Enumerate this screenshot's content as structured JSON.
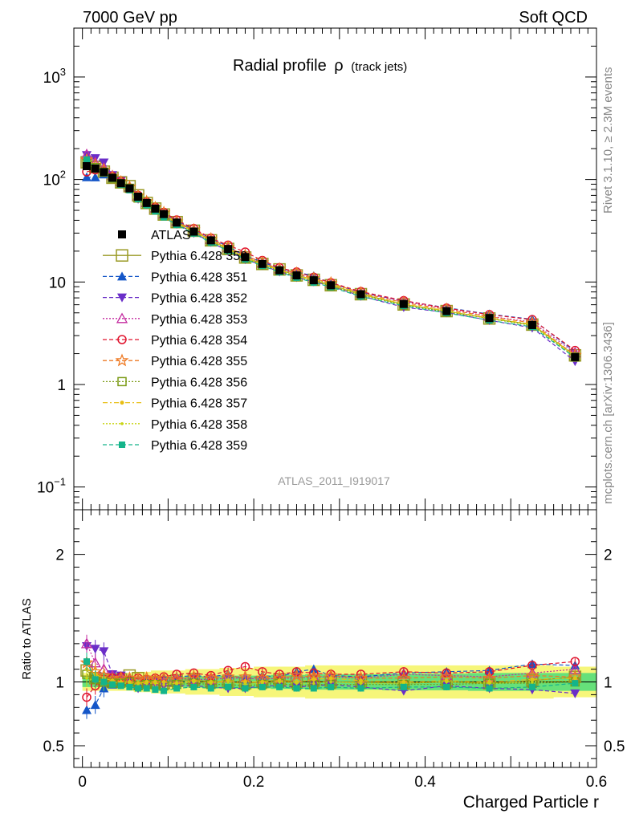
{
  "header": {
    "energy_label": "7000 GeV pp",
    "process_label": "Soft QCD",
    "title_main": "Radial profile",
    "title_symbol": "ρ",
    "title_sub": "(track jets)",
    "analysis_id": "ATLAS_2011_I919017",
    "side_label_top": "Rivet 3.1.10, ≥ 2.3M events",
    "side_label_bottom": "mcplots.cern.ch [arXiv:1306.3436]"
  },
  "axes": {
    "xlabel": "Charged Particle r",
    "ylabel_ratio": "Ratio to ATLAS",
    "xlim": [
      -0.01,
      0.6
    ],
    "ylim_main": [
      0.06,
      3000
    ],
    "ylim_ratio": [
      0.33,
      2.35
    ],
    "main_scale": "log",
    "x_ticks": [
      "0",
      "0.2",
      "0.4",
      "0.6"
    ],
    "main_tick_labels": [
      "10",
      "1",
      "10",
      "10",
      "10"
    ],
    "main_tick_exponents": [
      "−1",
      "",
      "",
      "2",
      "3"
    ],
    "ratio_ticks": [
      "0.5",
      "1",
      "2"
    ],
    "ratio_ticks_right": [
      "0.5",
      "1",
      "2"
    ]
  },
  "chart_data": {
    "type": "line",
    "x": [
      0.005,
      0.015,
      0.025,
      0.035,
      0.045,
      0.055,
      0.065,
      0.075,
      0.085,
      0.095,
      0.11,
      0.13,
      0.15,
      0.17,
      0.19,
      0.21,
      0.23,
      0.25,
      0.27,
      0.29,
      0.325,
      0.375,
      0.425,
      0.475,
      0.525,
      0.575
    ],
    "atlas_values": [
      135,
      128,
      118,
      104,
      92,
      82,
      68,
      59,
      52,
      46,
      38,
      31,
      25.5,
      21,
      17.5,
      15,
      13,
      11.6,
      10.4,
      9.3,
      7.6,
      6.1,
      5.2,
      4.45,
      3.8,
      1.85
    ],
    "series": [
      {
        "name": "ATLAS",
        "color": "#000000",
        "marker": "filled-square",
        "dash": "none",
        "ratio": [
          1,
          1,
          1,
          1,
          1,
          1,
          1,
          1,
          1,
          1,
          1,
          1,
          1,
          1,
          1,
          1,
          1,
          1,
          1,
          1,
          1,
          1,
          1,
          1,
          1,
          1
        ]
      },
      {
        "name": "Pythia 6.428 350",
        "color": "#9a9a24",
        "marker": "open-square-large",
        "dash": "solid",
        "ratio": [
          1.09,
          1.03,
          1.01,
          1.0,
          1.02,
          1.05,
          1.03,
          1.0,
          1.0,
          0.99,
          1.01,
          1.02,
          1.0,
          1.0,
          0.99,
          1.0,
          1.02,
          1.0,
          1.01,
          1.0,
          1.0,
          0.99,
          1.0,
          0.99,
          1.01,
          1.04
        ]
      },
      {
        "name": "Pythia 6.428 351",
        "color": "#1456c8",
        "marker": "filled-triangle-up",
        "dash": "dashed",
        "ratio": [
          0.78,
          0.82,
          0.95,
          0.98,
          1.0,
          1.03,
          0.97,
          1.0,
          1.02,
          1.03,
          1.04,
          1.05,
          1.04,
          1.06,
          1.02,
          1.05,
          1.04,
          1.08,
          1.1,
          1.05,
          1.04,
          1.07,
          1.08,
          1.09,
          1.14,
          1.13
        ]
      },
      {
        "name": "Pythia 6.428 352",
        "color": "#6a2ec8",
        "marker": "filled-triangle-down",
        "dash": "dashed",
        "ratio": [
          1.28,
          1.26,
          1.24,
          1.06,
          1.05,
          1.0,
          0.95,
          0.97,
          0.99,
          0.97,
          0.97,
          0.97,
          0.96,
          0.95,
          0.95,
          0.97,
          0.97,
          0.96,
          0.97,
          0.98,
          0.96,
          0.93,
          0.97,
          0.95,
          0.94,
          0.91
        ]
      },
      {
        "name": "Pythia 6.428 353",
        "color": "#c42ca0",
        "marker": "open-triangle-up",
        "dash": "dotted",
        "ratio": [
          1.3,
          1.15,
          1.1,
          1.05,
          1.04,
          1.03,
          1.02,
          1.01,
          1.01,
          1.0,
          1.03,
          1.02,
          1.02,
          1.03,
          1.03,
          1.02,
          1.03,
          1.03,
          1.04,
          1.04,
          1.03,
          1.06,
          1.05,
          1.04,
          1.07,
          1.1
        ]
      },
      {
        "name": "Pythia 6.428 354",
        "color": "#e0142e",
        "marker": "open-circle",
        "dash": "dashed",
        "ratio": [
          0.88,
          0.97,
          1.02,
          1.03,
          1.04,
          1.01,
          1.03,
          1.02,
          1.03,
          1.04,
          1.06,
          1.07,
          1.05,
          1.09,
          1.12,
          1.08,
          1.06,
          1.08,
          1.07,
          1.06,
          1.06,
          1.08,
          1.07,
          1.08,
          1.13,
          1.16
        ]
      },
      {
        "name": "Pythia 6.428 355",
        "color": "#ee7a24",
        "marker": "open-star",
        "dash": "dashed",
        "ratio": [
          1.15,
          1.08,
          1.05,
          1.02,
          1.03,
          1.03,
          1.02,
          1.03,
          1.02,
          1.03,
          1.02,
          1.04,
          1.03,
          1.04,
          1.04,
          1.03,
          1.03,
          1.05,
          1.04,
          1.05,
          1.03,
          1.03,
          1.04,
          1.03,
          1.05,
          1.04
        ]
      },
      {
        "name": "Pythia 6.428 356",
        "color": "#7a9a14",
        "marker": "open-square",
        "dash": "dotted",
        "ratio": [
          1.06,
          1.02,
          1.0,
          0.99,
          0.99,
          1.0,
          0.97,
          0.98,
          0.98,
          0.97,
          0.98,
          0.99,
          0.98,
          0.98,
          0.97,
          0.98,
          0.99,
          0.97,
          0.98,
          0.98,
          0.98,
          0.98,
          0.98,
          0.99,
          0.99,
          1.0
        ]
      },
      {
        "name": "Pythia 6.428 357",
        "color": "#e8be14",
        "marker": "dot",
        "dash": "dashdot",
        "ratio": [
          1.1,
          1.06,
          1.03,
          1.01,
          1.0,
          1.0,
          0.99,
          1.0,
          1.0,
          1.0,
          0.99,
          1.01,
          1.0,
          1.01,
          1.0,
          1.0,
          1.01,
          1.0,
          1.02,
          1.03,
          1.01,
          1.0,
          1.01,
          1.0,
          1.02,
          1.03
        ]
      },
      {
        "name": "Pythia 6.428 358",
        "color": "#c8d414",
        "marker": "small-dot",
        "dash": "dotted",
        "ratio": [
          1.03,
          1.01,
          1.0,
          1.0,
          0.99,
          0.99,
          0.98,
          0.99,
          0.99,
          0.98,
          0.99,
          1.0,
          0.99,
          1.0,
          0.98,
          0.99,
          1.0,
          0.99,
          0.99,
          1.0,
          0.99,
          0.99,
          1.0,
          0.99,
          1.0,
          1.01
        ]
      },
      {
        "name": "Pythia 6.428 359",
        "color": "#14b48a",
        "marker": "filled-square-small",
        "dash": "dashed",
        "ratio": [
          1.16,
          1.02,
          1.0,
          0.98,
          0.97,
          0.96,
          0.95,
          0.95,
          0.94,
          0.93,
          0.95,
          0.96,
          0.95,
          0.96,
          0.95,
          0.96,
          0.96,
          0.95,
          0.95,
          0.96,
          0.95,
          0.96,
          0.96,
          0.95,
          0.96,
          0.99
        ]
      }
    ],
    "band_x": [
      0.0,
      0.01,
      0.02,
      0.03,
      0.04,
      0.05,
      0.06,
      0.07,
      0.08,
      0.09,
      0.1,
      0.12,
      0.14,
      0.16,
      0.18,
      0.2,
      0.22,
      0.24,
      0.26,
      0.28,
      0.3,
      0.35,
      0.4,
      0.45,
      0.5,
      0.55,
      0.6
    ],
    "stat_band_half": [
      0.04,
      0.04,
      0.04,
      0.04,
      0.04,
      0.04,
      0.04,
      0.04,
      0.04,
      0.04,
      0.04,
      0.045,
      0.045,
      0.05,
      0.05,
      0.05,
      0.055,
      0.055,
      0.06,
      0.06,
      0.06,
      0.065,
      0.065,
      0.07,
      0.07,
      0.07
    ],
    "syst_band_half": [
      0.07,
      0.07,
      0.07,
      0.07,
      0.07,
      0.07,
      0.08,
      0.08,
      0.09,
      0.09,
      0.09,
      0.1,
      0.1,
      0.11,
      0.11,
      0.12,
      0.12,
      0.12,
      0.13,
      0.13,
      0.13,
      0.13,
      0.13,
      0.13,
      0.13,
      0.12
    ],
    "band_colors": {
      "stat": "#66e07a",
      "syst": "#f6f67a"
    },
    "legend_placement": "middle-left",
    "grid": false
  }
}
